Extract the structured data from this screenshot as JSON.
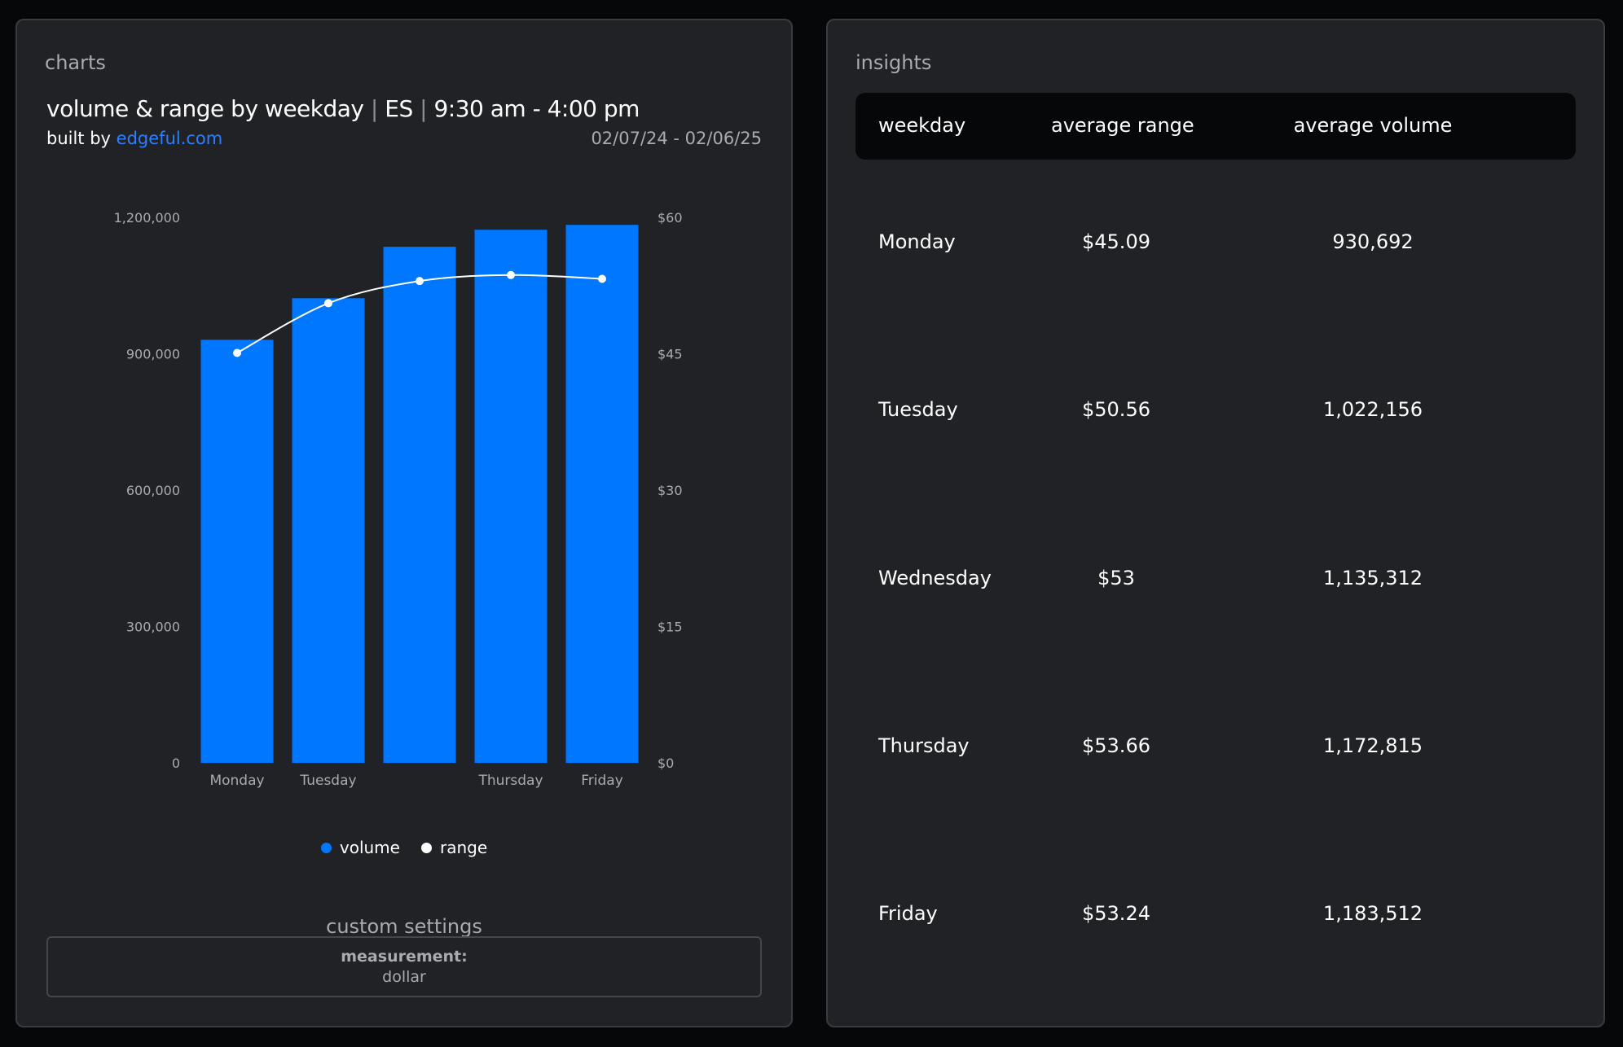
{
  "charts_panel": {
    "label": "charts",
    "title_main": "volume & range by weekday",
    "title_symbol": "ES",
    "title_session": "9:30 am - 4:00 pm",
    "title_sep": "|",
    "built_by_prefix": "built by",
    "built_by_link": "edgeful.com",
    "date_range": "02/07/24 - 02/06/25",
    "custom_settings": {
      "title": "custom settings",
      "measurement_label": "measurement:",
      "measurement_value": "dollar"
    }
  },
  "chart_data": {
    "type": "bar",
    "categories": [
      "Monday",
      "Tuesday",
      "Wednesday",
      "Thursday",
      "Friday"
    ],
    "x_tick_labels": [
      "Monday",
      "Tuesday",
      "",
      "Thursday",
      "Friday"
    ],
    "series": [
      {
        "name": "volume",
        "kind": "bar",
        "axis": "left",
        "color": "#0077ff",
        "values": [
          930692,
          1022156,
          1135312,
          1172815,
          1183512
        ]
      },
      {
        "name": "range",
        "kind": "line",
        "axis": "right",
        "color": "#ffffff",
        "values": [
          45.09,
          50.56,
          53,
          53.66,
          53.24
        ]
      }
    ],
    "y_left": {
      "ylim": [
        0,
        1200000
      ],
      "ticks": [
        0,
        300000,
        600000,
        900000,
        1200000
      ],
      "tick_labels": [
        "0",
        "300,000",
        "600,000",
        "900,000",
        "1,200,000"
      ]
    },
    "y_right": {
      "ylim": [
        0,
        60
      ],
      "ticks": [
        0,
        15,
        30,
        45,
        60
      ],
      "tick_labels": [
        "$0",
        "$15",
        "$30",
        "$45",
        "$60"
      ]
    },
    "grid": false,
    "legend_position": "bottom-center",
    "legend": [
      {
        "label": "volume",
        "color": "#0077ff"
      },
      {
        "label": "range",
        "color": "#ffffff"
      }
    ]
  },
  "insights_panel": {
    "label": "insights",
    "columns": [
      "weekday",
      "average range",
      "average volume"
    ],
    "rows": [
      [
        "Monday",
        "$45.09",
        "930,692"
      ],
      [
        "Tuesday",
        "$50.56",
        "1,022,156"
      ],
      [
        "Wednesday",
        "$53",
        "1,135,312"
      ],
      [
        "Thursday",
        "$53.66",
        "1,172,815"
      ],
      [
        "Friday",
        "$53.24",
        "1,183,512"
      ]
    ]
  }
}
